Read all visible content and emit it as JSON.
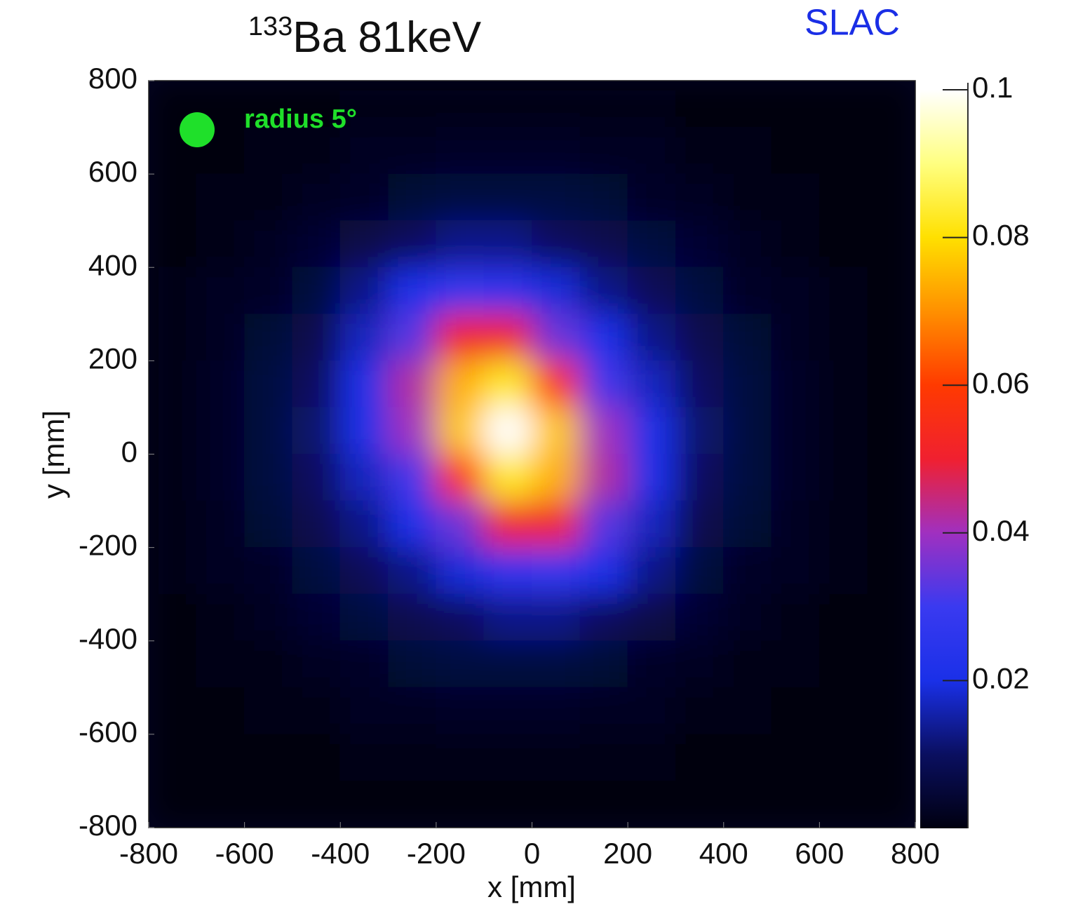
{
  "chart_data": {
    "type": "heatmap",
    "title_superscript": "133",
    "title": "Ba 81keV",
    "corner_label": "SLAC",
    "corner_label_color": "#1a2ee6",
    "annotation": "radius 5°",
    "annotation_color": "#1fe02a",
    "xlabel": "x [mm]",
    "ylabel": "y [mm]",
    "x": [
      -750,
      -650,
      -550,
      -450,
      -350,
      -250,
      -150,
      -50,
      50,
      150,
      250,
      350,
      450,
      550,
      650,
      750
    ],
    "y": [
      750,
      650,
      550,
      450,
      350,
      250,
      150,
      50,
      -50,
      -150,
      -250,
      -350,
      -450,
      -550,
      -650,
      -750
    ],
    "z": [
      [
        0,
        0,
        0,
        0,
        0.001,
        0.001,
        0.001,
        0.001,
        0.001,
        0.001,
        0.001,
        0,
        0,
        0,
        0,
        0
      ],
      [
        0,
        0,
        0.001,
        0.001,
        0.002,
        0.002,
        0.003,
        0.003,
        0.003,
        0.002,
        0.002,
        0.001,
        0.001,
        0,
        0,
        0
      ],
      [
        0,
        0.001,
        0.001,
        0.002,
        0.003,
        0.005,
        0.006,
        0.006,
        0.006,
        0.005,
        0.003,
        0.002,
        0.001,
        0.001,
        0,
        0
      ],
      [
        0,
        0.001,
        0.002,
        0.004,
        0.007,
        0.01,
        0.013,
        0.013,
        0.01,
        0.008,
        0.006,
        0.004,
        0.002,
        0.001,
        0,
        0
      ],
      [
        0.001,
        0.002,
        0.003,
        0.006,
        0.013,
        0.02,
        0.027,
        0.026,
        0.019,
        0.013,
        0.009,
        0.006,
        0.003,
        0.002,
        0.001,
        0
      ],
      [
        0.001,
        0.002,
        0.005,
        0.008,
        0.017,
        0.033,
        0.051,
        0.051,
        0.035,
        0.021,
        0.013,
        0.008,
        0.005,
        0.002,
        0.001,
        0
      ],
      [
        0.001,
        0.003,
        0.006,
        0.01,
        0.02,
        0.042,
        0.074,
        0.083,
        0.058,
        0.031,
        0.017,
        0.01,
        0.006,
        0.003,
        0.001,
        0
      ],
      [
        0.001,
        0.003,
        0.006,
        0.011,
        0.02,
        0.04,
        0.077,
        0.1,
        0.077,
        0.04,
        0.02,
        0.011,
        0.006,
        0.003,
        0.001,
        0
      ],
      [
        0.001,
        0.003,
        0.006,
        0.01,
        0.017,
        0.031,
        0.058,
        0.083,
        0.074,
        0.042,
        0.02,
        0.01,
        0.006,
        0.003,
        0.001,
        0
      ],
      [
        0.001,
        0.002,
        0.005,
        0.008,
        0.013,
        0.021,
        0.035,
        0.051,
        0.051,
        0.033,
        0.017,
        0.008,
        0.005,
        0.002,
        0.001,
        0
      ],
      [
        0.001,
        0.002,
        0.003,
        0.006,
        0.009,
        0.013,
        0.019,
        0.026,
        0.027,
        0.02,
        0.013,
        0.006,
        0.003,
        0.002,
        0.001,
        0
      ],
      [
        0,
        0.001,
        0.002,
        0.004,
        0.006,
        0.008,
        0.01,
        0.013,
        0.013,
        0.01,
        0.007,
        0.004,
        0.002,
        0.001,
        0,
        0
      ],
      [
        0,
        0.001,
        0.001,
        0.002,
        0.003,
        0.005,
        0.006,
        0.006,
        0.006,
        0.005,
        0.003,
        0.002,
        0.001,
        0.001,
        0,
        0
      ],
      [
        0,
        0,
        0.001,
        0.001,
        0.002,
        0.002,
        0.003,
        0.003,
        0.003,
        0.002,
        0.002,
        0.001,
        0.001,
        0,
        0,
        0
      ],
      [
        0,
        0,
        0,
        0,
        0.001,
        0.001,
        0.001,
        0.001,
        0.001,
        0.001,
        0.001,
        0,
        0,
        0,
        0,
        0
      ],
      [
        0,
        0,
        0,
        0,
        0,
        0,
        0,
        0,
        0,
        0,
        0,
        0,
        0,
        0,
        0,
        0
      ]
    ],
    "xlim": [
      -800,
      800
    ],
    "ylim": [
      -800,
      800
    ],
    "xticks": [
      -800,
      -600,
      -400,
      -200,
      0,
      200,
      400,
      600,
      800
    ],
    "yticks": [
      -800,
      -600,
      -400,
      -200,
      0,
      200,
      400,
      600,
      800
    ],
    "zlim": [
      0,
      0.1
    ],
    "zticks": [
      0.02,
      0.04,
      0.06,
      0.08,
      0.1
    ],
    "colormap": [
      "#000010",
      "#0a0f60",
      "#1a30e8",
      "#3a3af0",
      "#a030c0",
      "#f02030",
      "#ff3a00",
      "#ff9000",
      "#ffe000",
      "#ffff80",
      "#ffffff"
    ],
    "background": "#03031c"
  }
}
